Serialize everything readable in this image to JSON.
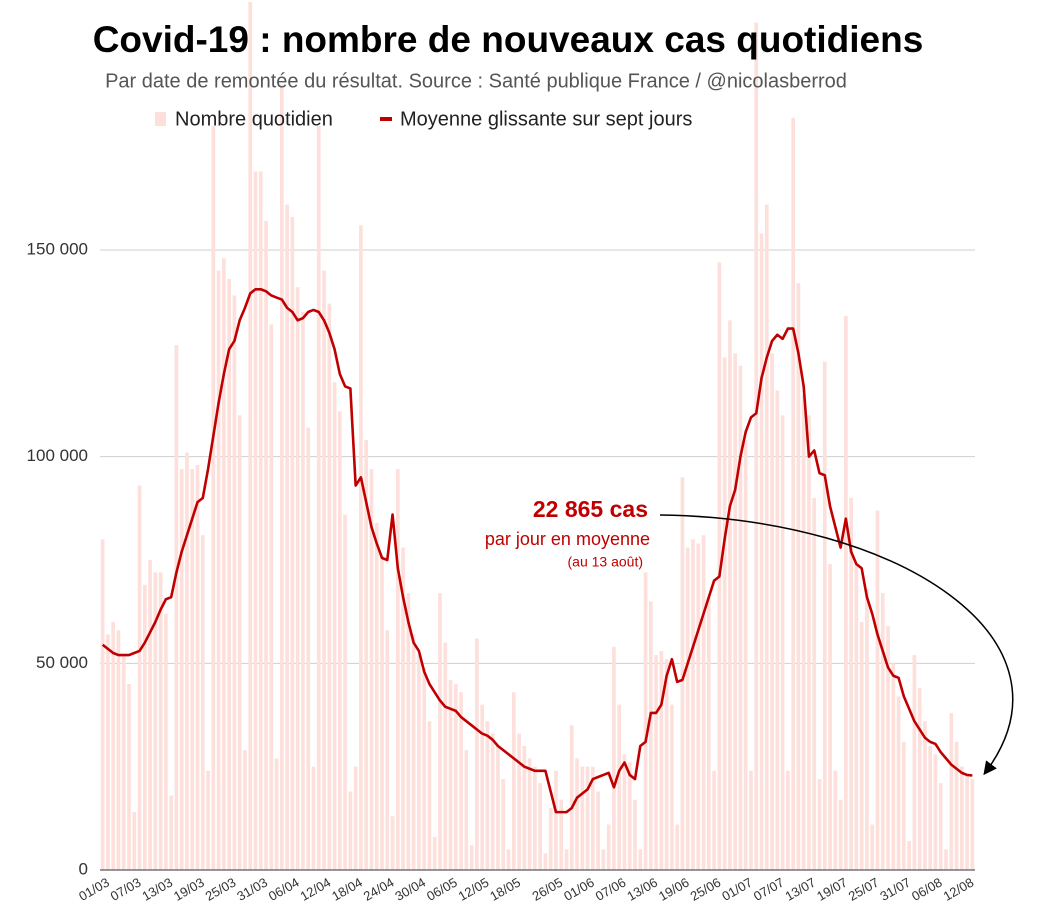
{
  "chart_data": {
    "type": "combo",
    "title": "Covid-19 : nombre de nouveaux cas quotidiens",
    "subtitle": "Par date de remontée du résultat. Source : Santé publique France / @nicolasberrod",
    "annotations": [
      {
        "text": "22 865 cas"
      },
      {
        "text": "par jour en moyenne"
      },
      {
        "text": "(au 13 août)"
      }
    ],
    "categories": [
      "01/03",
      null,
      null,
      null,
      null,
      null,
      "07/03",
      null,
      null,
      null,
      null,
      null,
      "13/03",
      null,
      null,
      null,
      null,
      null,
      "19/03",
      null,
      null,
      null,
      null,
      null,
      "25/03",
      null,
      null,
      null,
      null,
      null,
      "31/03",
      null,
      null,
      null,
      null,
      null,
      "06/04",
      null,
      null,
      null,
      null,
      null,
      "12/04",
      null,
      null,
      null,
      null,
      null,
      "18/04",
      null,
      null,
      null,
      null,
      null,
      "24/04",
      null,
      null,
      null,
      null,
      null,
      "30/04",
      null,
      null,
      null,
      null,
      null,
      "06/05",
      null,
      null,
      null,
      null,
      null,
      "12/05",
      null,
      null,
      null,
      null,
      null,
      "18/05",
      null,
      null,
      null,
      null,
      null,
      null,
      null,
      "26/05",
      null,
      null,
      null,
      null,
      null,
      "01/06",
      null,
      null,
      null,
      null,
      null,
      "07/06",
      null,
      null,
      null,
      null,
      null,
      "13/06",
      null,
      null,
      null,
      null,
      null,
      "19/06",
      null,
      null,
      null,
      null,
      null,
      "25/06",
      null,
      null,
      null,
      null,
      null,
      "01/07",
      null,
      null,
      null,
      null,
      null,
      "07/07",
      null,
      null,
      null,
      null,
      null,
      "13/07",
      null,
      null,
      null,
      null,
      null,
      "19/07",
      null,
      null,
      null,
      null,
      null,
      "25/07",
      null,
      null,
      null,
      null,
      null,
      "31/07",
      null,
      null,
      null,
      null,
      null,
      "06/08",
      null,
      null,
      null,
      null,
      null,
      "12/08",
      null
    ],
    "series": [
      {
        "name": "Nombre quotidien",
        "type": "bar",
        "color": "#fde0dc",
        "values": [
          80000,
          57000,
          60000,
          58000,
          52000,
          45000,
          14000,
          93000,
          69000,
          75000,
          72000,
          72000,
          62000,
          18000,
          127000,
          97000,
          101000,
          97000,
          98000,
          81000,
          24000,
          180000,
          145000,
          148000,
          143000,
          139000,
          110000,
          29000,
          210000,
          169000,
          169000,
          157000,
          132000,
          27000,
          190000,
          161000,
          158000,
          141000,
          135000,
          107000,
          25000,
          180000,
          145000,
          137000,
          118000,
          111000,
          86000,
          19000,
          25000,
          156000,
          104000,
          97000,
          84000,
          76000,
          58000,
          13000,
          97000,
          78000,
          67000,
          57000,
          52000,
          49000,
          36000,
          8000,
          67000,
          55000,
          46000,
          45000,
          43000,
          29000,
          6000,
          56000,
          40000,
          36000,
          33000,
          30000,
          22000,
          5000,
          43000,
          33000,
          30000,
          27000,
          25000,
          21000,
          4000,
          15000,
          24000,
          17000,
          5000,
          35000,
          27000,
          25000,
          25000,
          25000,
          19000,
          5000,
          11000,
          54000,
          40000,
          28000,
          26000,
          17000,
          5000,
          72000,
          65000,
          52000,
          53000,
          51000,
          40000,
          11000,
          95000,
          78000,
          80000,
          79000,
          81000,
          66000,
          24000,
          147000,
          124000,
          133000,
          125000,
          122000,
          104000,
          24000,
          205000,
          154000,
          161000,
          125000,
          116000,
          110000,
          24000,
          182000,
          142000,
          115000,
          110000,
          90000,
          22000,
          123000,
          74000,
          24000,
          17000,
          134000,
          90000,
          74000,
          60000,
          68000,
          11000,
          87000,
          67000,
          59000,
          50000,
          42000,
          31000,
          7000,
          52000,
          44000,
          36000,
          30000,
          28000,
          21000,
          5000,
          38000,
          31000,
          25000,
          23000,
          22000
        ]
      },
      {
        "name": "Moyenne glissante sur sept jours",
        "type": "line",
        "color": "#c00000",
        "values": [
          54500,
          53500,
          52500,
          52000,
          52000,
          52000,
          52500,
          53000,
          55000,
          57500,
          60000,
          63000,
          65500,
          66000,
          72000,
          77000,
          81000,
          85000,
          89000,
          90000,
          97000,
          105000,
          113000,
          120000,
          126000,
          128000,
          133000,
          136000,
          139500,
          140500,
          140500,
          140000,
          139000,
          138500,
          138000,
          136000,
          135000,
          133000,
          133500,
          135000,
          135500,
          135000,
          133000,
          130000,
          126000,
          120000,
          117000,
          116500,
          93000,
          95000,
          89000,
          83000,
          79000,
          75500,
          75000,
          86000,
          73000,
          66000,
          60000,
          55000,
          53000,
          48000,
          45000,
          43000,
          41000,
          39500,
          39000,
          38500,
          37000,
          36000,
          35000,
          34000,
          33000,
          32500,
          31500,
          30000,
          29000,
          28000,
          27000,
          26000,
          25000,
          24500,
          24000,
          24000,
          24000,
          19000,
          14000,
          14000,
          14000,
          15000,
          17500,
          18500,
          19500,
          22000,
          22500,
          23000,
          23500,
          20000,
          24000,
          26000,
          23000,
          22000,
          30000,
          31000,
          38000,
          38000,
          40000,
          47000,
          51000,
          45500,
          46000,
          50000,
          54000,
          58000,
          62000,
          66000,
          70000,
          71000,
          80000,
          88000,
          92000,
          100000,
          106000,
          109500,
          110500,
          119000,
          124000,
          128000,
          129500,
          128500,
          131000,
          131000,
          125000,
          117000,
          100000,
          101500,
          96000,
          95500,
          88000,
          83000,
          78000,
          85000,
          77000,
          74000,
          73000,
          66000,
          62000,
          57000,
          53000,
          49000,
          47000,
          46500,
          42000,
          39000,
          36000,
          34000,
          32000,
          31000,
          30500,
          28500,
          27000,
          25500,
          24500,
          23500,
          23000,
          22865
        ]
      }
    ],
    "ylim": [
      0,
      210000
    ],
    "yticks": [
      {
        "value": 0,
        "label": "0"
      },
      {
        "value": 50000,
        "label": "50 000"
      },
      {
        "value": 100000,
        "label": "100 000"
      },
      {
        "value": 150000,
        "label": "150 000"
      }
    ],
    "grid": true,
    "legend": "top"
  }
}
